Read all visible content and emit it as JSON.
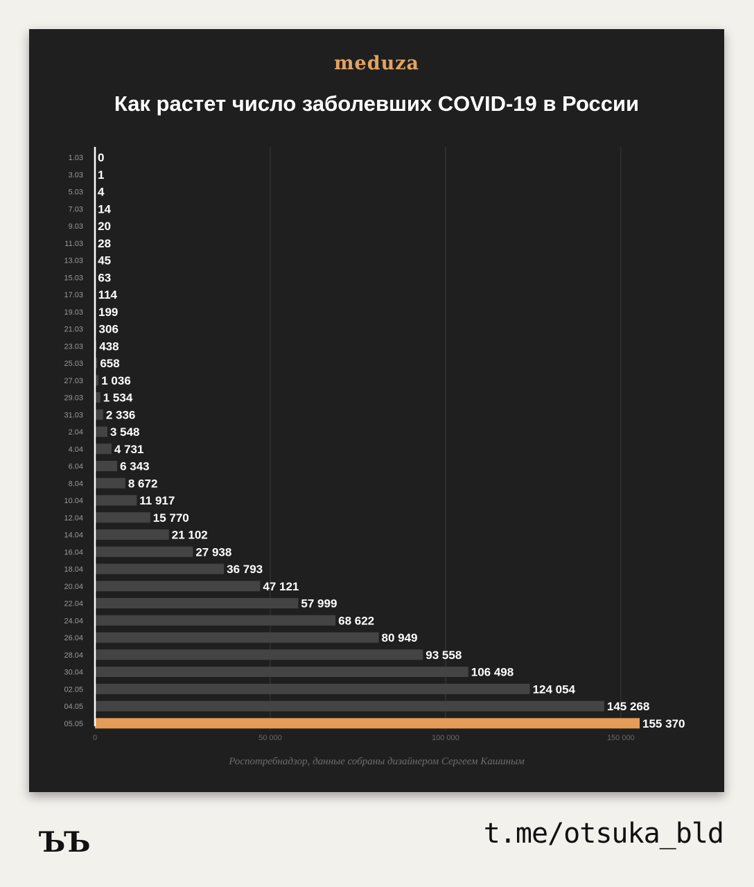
{
  "brand": "meduza",
  "title": "Как растет число заболевших COVID-19 в России",
  "source": "Роспотребнадзор, данные собраны дизайнером Сергеем Кашиным",
  "footer": {
    "logo": "ЪЪ",
    "handle": "t.me/otsuka_bld"
  },
  "colors": {
    "background": "#1f1f1f",
    "bar": "#444444",
    "highlight": "#e49c57",
    "text": "#ffffff",
    "grid": "#3a3a3a"
  },
  "chart_data": {
    "type": "bar",
    "orientation": "horizontal",
    "categories": [
      "1.03",
      "3.03",
      "5.03",
      "7.03",
      "9.03",
      "11.03",
      "13.03",
      "15.03",
      "17.03",
      "19.03",
      "21.03",
      "23.03",
      "25.03",
      "27.03",
      "29.03",
      "31.03",
      "2.04",
      "4.04",
      "6.04",
      "8.04",
      "10.04",
      "12.04",
      "14.04",
      "16.04",
      "18.04",
      "20.04",
      "22.04",
      "24.04",
      "26.04",
      "28.04",
      "30.04",
      "02.05",
      "04.05",
      "05.05"
    ],
    "values": [
      0,
      1,
      4,
      14,
      20,
      28,
      45,
      63,
      114,
      199,
      306,
      438,
      658,
      1036,
      1534,
      2336,
      3548,
      4731,
      6343,
      8672,
      11917,
      15770,
      21102,
      27938,
      36793,
      47121,
      57999,
      68622,
      80949,
      93558,
      106498,
      124054,
      145268,
      155370
    ],
    "labels": [
      "0",
      "1",
      "4",
      "14",
      "20",
      "28",
      "45",
      "63",
      "114",
      "199",
      "306",
      "438",
      "658",
      "1 036",
      "1 534",
      "2 336",
      "3 548",
      "4 731",
      "6 343",
      "8 672",
      "11 917",
      "15 770",
      "21 102",
      "27 938",
      "36 793",
      "47 121",
      "57 999",
      "68 622",
      "80 949",
      "93 558",
      "106 498",
      "124 054",
      "145 268",
      "155 370"
    ],
    "highlight_index": 33,
    "xticks": [
      0,
      50000,
      100000,
      150000
    ],
    "xtick_labels": [
      "0",
      "50 000",
      "100 000",
      "150 000"
    ],
    "xlim": [
      0,
      155370
    ],
    "grid": true
  }
}
